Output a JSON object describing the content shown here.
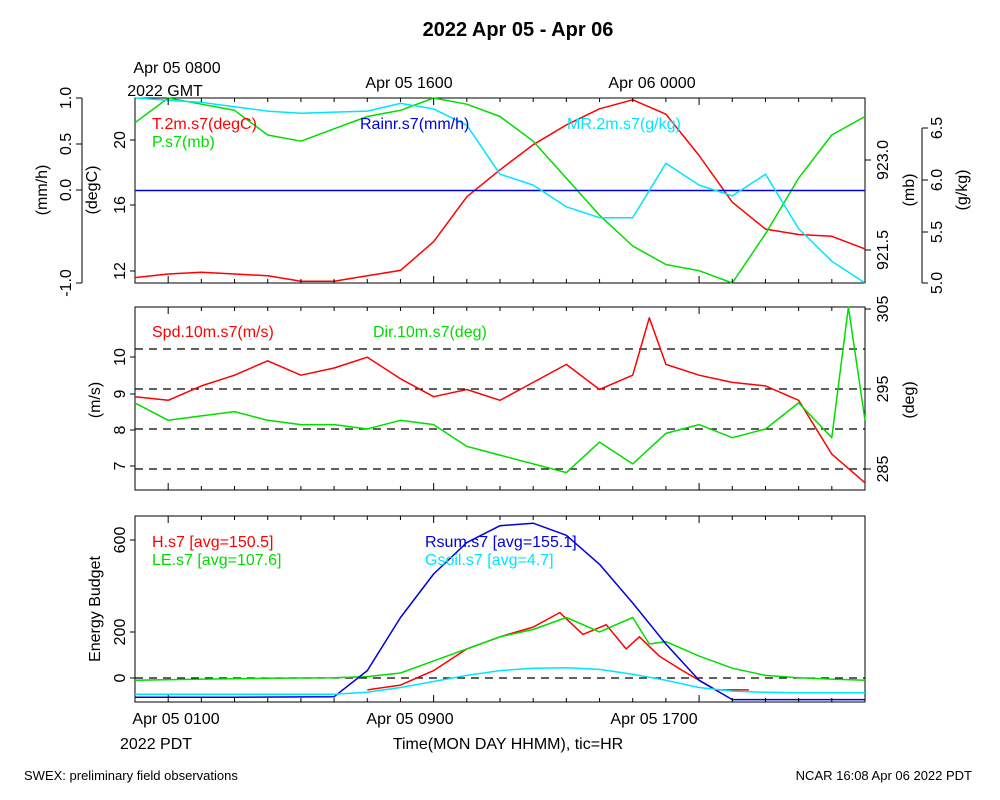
{
  "title": "2022 Apr 05 - Apr 06",
  "top_axis": {
    "labels": [
      {
        "line1": "Apr 05 0800",
        "line2": "2022 GMT"
      },
      {
        "line1": "Apr 05 1600",
        "line2": ""
      },
      {
        "line1": "Apr 06 0000",
        "line2": ""
      }
    ]
  },
  "bottom_axis": {
    "tick_labels": [
      "Apr 05 0100",
      "Apr 05 0900",
      "Apr 05 1700"
    ],
    "tz_label": "2022 PDT",
    "xlabel": "Time(MON DAY HHMM), tic=HR"
  },
  "footer_left": "SWEX: preliminary field observations",
  "footer_right": "NCAR 16:08 Apr 06 2022 PDT",
  "colors": {
    "red": "#ff0000",
    "green": "#00dd00",
    "cyan": "#00e5ff",
    "blue": "#0000dd",
    "black": "#000000"
  },
  "chart_data": [
    {
      "type": "line",
      "panel": "met",
      "x_unit": "hours since Apr 05 0000 PDT",
      "xlim": [
        0,
        22
      ],
      "axes": {
        "rain": {
          "label": "(mm/h)",
          "ticks": [
            "1.0",
            "0.5",
            "0.0",
            "-1.0"
          ],
          "ylim": [
            -1.0,
            1.0
          ]
        },
        "temp": {
          "label": "(degC)",
          "ticks": [
            "20",
            "16",
            "12"
          ],
          "ylim": [
            12,
            22.3
          ]
        },
        "pres": {
          "label": "(mb)",
          "ticks": [
            "923.0",
            "921.5"
          ],
          "ylim": [
            921.0,
            924.0
          ]
        },
        "mr": {
          "label": "(g/kg)",
          "ticks": [
            "6.5",
            "6.0",
            "5.5",
            "5.0"
          ],
          "ylim": [
            5.0,
            6.7
          ]
        }
      },
      "series": [
        {
          "name": "T.2m.s7(degC)",
          "color": "red",
          "axis": "temp",
          "x": [
            0,
            1,
            2,
            3,
            4,
            5,
            6,
            7,
            8,
            9,
            10,
            11,
            12,
            13,
            14,
            15,
            16,
            17,
            18,
            19,
            20,
            21,
            22
          ],
          "y": [
            12.3,
            12.5,
            12.6,
            12.5,
            12.4,
            12.1,
            12.1,
            12.4,
            12.7,
            14.3,
            16.8,
            18.3,
            19.7,
            20.8,
            21.7,
            22.2,
            21.4,
            19.1,
            16.5,
            15.0,
            14.7,
            14.6,
            13.9
          ]
        },
        {
          "name": "P.s7(mb)",
          "color": "green",
          "axis": "pres",
          "x": [
            0,
            1,
            2,
            3,
            4,
            5,
            6,
            7,
            8,
            9,
            10,
            11,
            12,
            13,
            14,
            15,
            16,
            17,
            18,
            19,
            20,
            21,
            22
          ],
          "y": [
            923.6,
            924.0,
            923.9,
            923.8,
            923.4,
            923.3,
            923.5,
            923.7,
            923.8,
            924.0,
            923.9,
            923.7,
            923.3,
            922.7,
            922.1,
            921.6,
            921.3,
            921.2,
            921.0,
            921.8,
            922.7,
            923.4,
            923.7
          ]
        },
        {
          "name": "Rainr.s7(mm/h)",
          "color": "blue",
          "axis": "rain",
          "x": [
            0,
            22
          ],
          "y": [
            0,
            0
          ]
        },
        {
          "name": "MR.2m.s7(g/kg)",
          "color": "cyan",
          "axis": "mr",
          "x": [
            0,
            1,
            2,
            3,
            4,
            5,
            6,
            7,
            8,
            9,
            10,
            11,
            12,
            13,
            14,
            15,
            16,
            17,
            18,
            19,
            20,
            21,
            22
          ],
          "y": [
            6.7,
            6.68,
            6.66,
            6.62,
            6.58,
            6.56,
            6.57,
            6.58,
            6.65,
            6.6,
            6.45,
            6.0,
            5.9,
            5.7,
            5.6,
            5.6,
            6.1,
            5.9,
            5.8,
            6.0,
            5.5,
            5.2,
            5.0
          ]
        }
      ]
    },
    {
      "type": "line",
      "panel": "wind",
      "x_unit": "hours since Apr 05 0000 PDT",
      "xlim": [
        0,
        22
      ],
      "axes": {
        "spd": {
          "label": "(m/s)",
          "ticks": [
            "10",
            "9",
            "8",
            "7"
          ],
          "ylim": [
            6.4,
            11.5
          ]
        },
        "dir": {
          "label": "(deg)",
          "ticks": [
            "305",
            "295",
            "285"
          ],
          "ylim": [
            284,
            305
          ]
        }
      },
      "series": [
        {
          "name": "Spd.10m.s7(m/s)",
          "color": "red",
          "axis": "spd",
          "x": [
            0,
            1,
            2,
            3,
            4,
            5,
            6,
            7,
            8,
            9,
            10,
            11,
            12,
            13,
            14,
            15,
            15.5,
            16,
            17,
            18,
            19,
            20,
            21,
            22
          ],
          "y": [
            9.0,
            8.9,
            9.3,
            9.6,
            10.0,
            9.6,
            9.8,
            10.1,
            9.5,
            9.0,
            9.2,
            8.9,
            9.4,
            9.9,
            9.2,
            9.6,
            11.2,
            9.9,
            9.6,
            9.4,
            9.3,
            8.9,
            7.4,
            6.6
          ]
        },
        {
          "name": "Dir.10m.s7(deg)",
          "color": "green",
          "axis": "dir",
          "x": [
            0,
            1,
            2,
            3,
            4,
            5,
            6,
            7,
            8,
            9,
            10,
            11,
            12,
            13,
            14,
            15,
            16,
            17,
            18,
            19,
            20,
            21,
            21.5,
            22
          ],
          "y": [
            294,
            292,
            292.5,
            293,
            292,
            291.5,
            291.5,
            291,
            292,
            291.5,
            289,
            288,
            287,
            286,
            289.5,
            287,
            290.5,
            291.5,
            290,
            291,
            294,
            290,
            305,
            292
          ]
        }
      ]
    },
    {
      "type": "line",
      "panel": "energy",
      "x_unit": "hours since Apr 05 0000 PDT",
      "xlim": [
        0,
        22
      ],
      "ylabel": "Energy Budget",
      "ylim": [
        -50,
        720
      ],
      "yticks": [
        "600",
        "200",
        "0"
      ],
      "series": [
        {
          "name": "H.s7 [avg=150.5]",
          "color": "red",
          "x": [
            7.0,
            8.0,
            9.0,
            10.0,
            11.0,
            12.0,
            12.8,
            13.5,
            14.2,
            14.8,
            15.2,
            15.8,
            16.5,
            17.5,
            18.5
          ],
          "y": [
            0,
            20,
            80,
            170,
            220,
            260,
            320,
            230,
            270,
            170,
            220,
            140,
            80,
            0,
            0
          ]
        },
        {
          "name": "LE.s7 [avg=107.6]",
          "color": "green",
          "x": [
            0,
            2,
            4,
            6,
            7,
            8,
            9,
            10,
            11,
            12,
            13,
            14,
            14.5,
            15,
            15.5,
            16,
            17,
            18,
            19,
            20,
            21,
            22
          ],
          "y": [
            40,
            45,
            48,
            50,
            55,
            70,
            120,
            170,
            220,
            250,
            300,
            240,
            270,
            300,
            190,
            200,
            140,
            90,
            60,
            50,
            45,
            40
          ]
        },
        {
          "name": "Rsum.s7 [avg=155.1]",
          "color": "blue",
          "x": [
            0,
            3,
            6,
            7,
            8,
            9,
            10,
            11,
            12,
            13,
            14,
            15,
            16,
            17,
            18,
            19,
            20,
            22
          ],
          "y": [
            -30,
            -30,
            -28,
            80,
            300,
            480,
            610,
            680,
            690,
            640,
            520,
            360,
            190,
            40,
            -40,
            -40,
            -40,
            -40
          ]
        },
        {
          "name": "Gsoil.s7 [avg=4.7]",
          "color": "cyan",
          "x": [
            0,
            3,
            6,
            7,
            8,
            9,
            10,
            11,
            12,
            13,
            14,
            15,
            16,
            17,
            18,
            19,
            20,
            22
          ],
          "y": [
            -18,
            -18,
            -18,
            -10,
            10,
            35,
            60,
            80,
            90,
            92,
            85,
            65,
            40,
            10,
            -5,
            -10,
            -12,
            -12
          ]
        }
      ]
    }
  ]
}
